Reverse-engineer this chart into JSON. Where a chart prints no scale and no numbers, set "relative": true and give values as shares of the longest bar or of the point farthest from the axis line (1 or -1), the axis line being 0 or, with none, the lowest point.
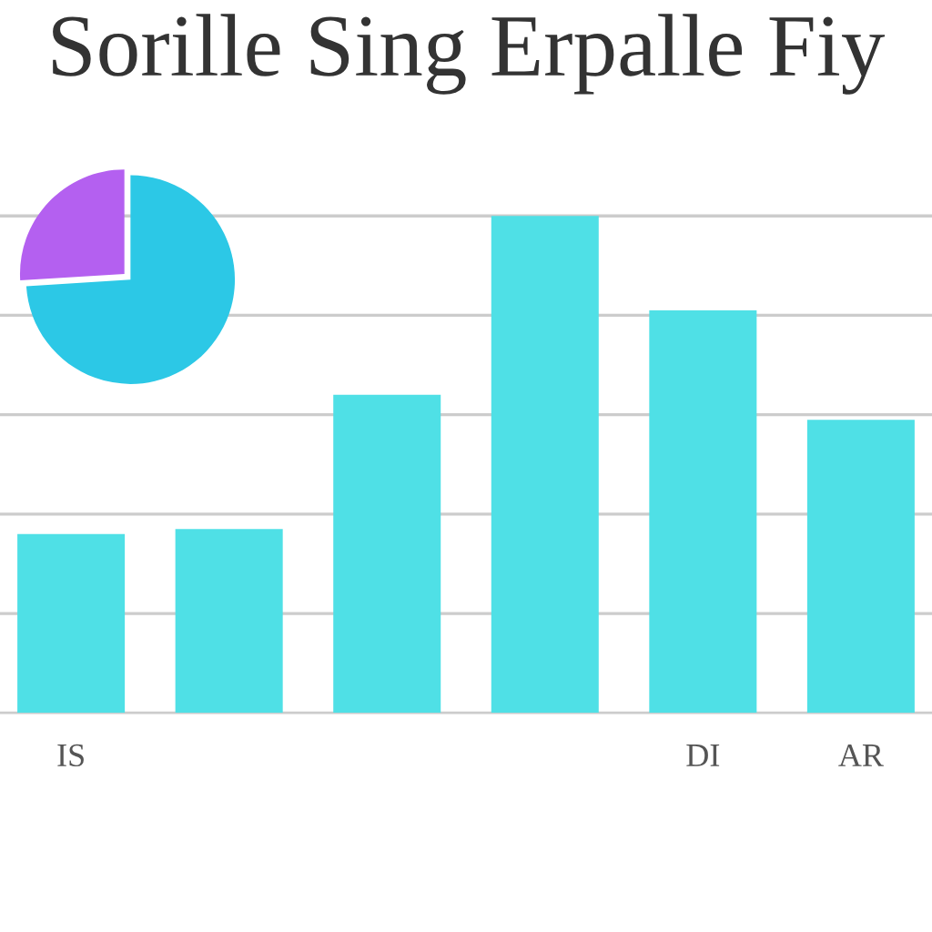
{
  "chart_data": [
    {
      "type": "bar",
      "title": "Sorille Sing Erpalle Fiy",
      "categories": [
        "IS",
        null,
        null,
        null,
        "DI",
        "AR"
      ],
      "relative": true,
      "values": [
        0.36,
        0.37,
        0.64,
        1,
        0.81,
        0.59
      ],
      "color": "#4fe0e6",
      "grid": "y"
    },
    {
      "type": "pie",
      "categories": [
        null,
        null
      ],
      "values": [
        74,
        26
      ],
      "colors": [
        "#2cc8e6",
        "#b460f0"
      ]
    }
  ]
}
